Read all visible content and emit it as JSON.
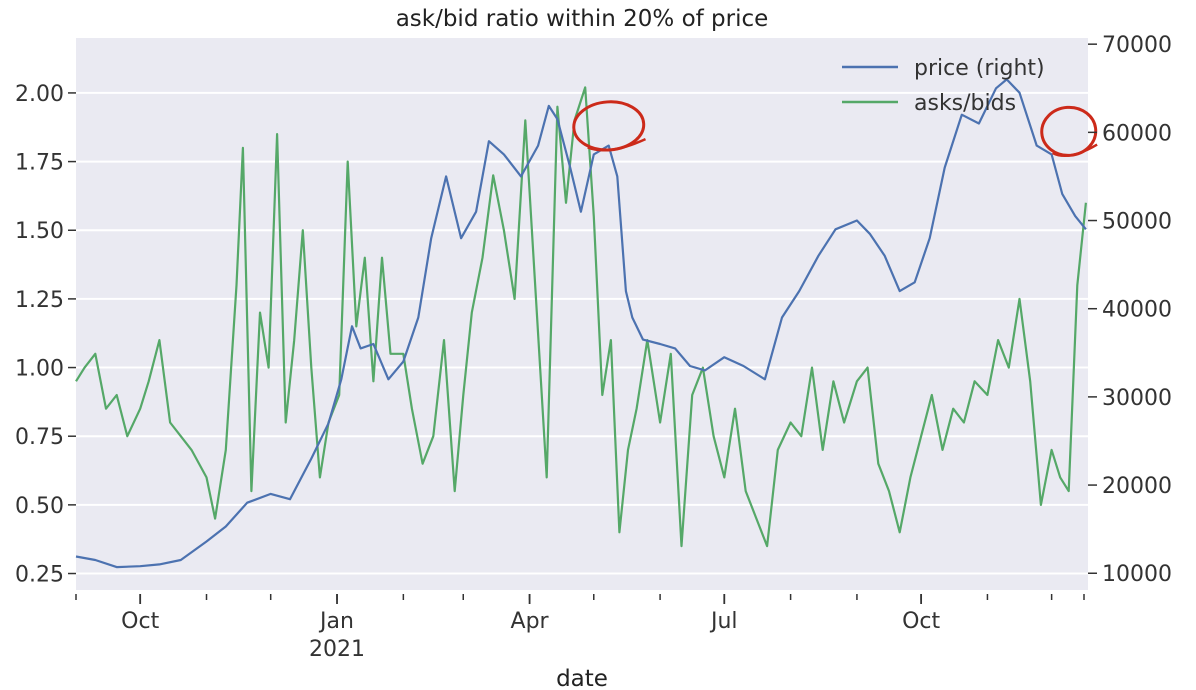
{
  "chart_data": {
    "type": "line",
    "title": "ask/bid ratio within 20% of price",
    "xlabel": "date",
    "x_ticks": [
      {
        "date": "2020-10-01",
        "label": "Oct",
        "sublabel": ""
      },
      {
        "date": "2021-01-01",
        "label": "Jan",
        "sublabel": "2021"
      },
      {
        "date": "2021-04-01",
        "label": "Apr",
        "sublabel": ""
      },
      {
        "date": "2021-07-01",
        "label": "Jul",
        "sublabel": ""
      },
      {
        "date": "2021-10-01",
        "label": "Oct",
        "sublabel": ""
      }
    ],
    "x_range": [
      "2020-09-01",
      "2021-12-18"
    ],
    "left_axis": {
      "ticks": [
        "0.25",
        "0.50",
        "0.75",
        "1.00",
        "1.25",
        "1.50",
        "1.75",
        "2.00"
      ],
      "ylim": [
        0.19,
        2.2
      ]
    },
    "right_axis": {
      "ticks": [
        "10000",
        "20000",
        "30000",
        "40000",
        "50000",
        "60000",
        "70000"
      ],
      "ylim": [
        8100,
        70700
      ]
    },
    "grid": true,
    "legend_position": "top-right",
    "series": [
      {
        "name": "price (right)",
        "axis": "right",
        "color": "#4c72b0",
        "x": [
          "2020-09-01",
          "2020-09-10",
          "2020-09-20",
          "2020-10-01",
          "2020-10-10",
          "2020-10-20",
          "2020-11-01",
          "2020-11-10",
          "2020-11-20",
          "2020-12-01",
          "2020-12-10",
          "2020-12-20",
          "2020-12-28",
          "2021-01-03",
          "2021-01-08",
          "2021-01-12",
          "2021-01-18",
          "2021-01-25",
          "2021-02-01",
          "2021-02-08",
          "2021-02-14",
          "2021-02-21",
          "2021-02-28",
          "2021-03-07",
          "2021-03-13",
          "2021-03-20",
          "2021-03-28",
          "2021-04-05",
          "2021-04-10",
          "2021-04-14",
          "2021-04-20",
          "2021-04-25",
          "2021-05-01",
          "2021-05-08",
          "2021-05-12",
          "2021-05-16",
          "2021-05-19",
          "2021-05-24",
          "2021-06-01",
          "2021-06-08",
          "2021-06-15",
          "2021-06-22",
          "2021-07-01",
          "2021-07-10",
          "2021-07-20",
          "2021-07-28",
          "2021-08-05",
          "2021-08-14",
          "2021-08-22",
          "2021-09-01",
          "2021-09-07",
          "2021-09-14",
          "2021-09-21",
          "2021-09-28",
          "2021-10-05",
          "2021-10-12",
          "2021-10-20",
          "2021-10-28",
          "2021-11-05",
          "2021-11-10",
          "2021-11-16",
          "2021-11-24",
          "2021-12-01",
          "2021-12-06",
          "2021-12-12",
          "2021-12-17"
        ],
        "values": [
          11900,
          11500,
          10700,
          10800,
          11000,
          11500,
          13600,
          15300,
          18000,
          19000,
          18400,
          23000,
          27000,
          32000,
          38000,
          35500,
          36000,
          32000,
          34000,
          39000,
          48000,
          55000,
          48000,
          51000,
          59000,
          57500,
          55000,
          58500,
          63000,
          61500,
          56000,
          51000,
          57500,
          58500,
          55000,
          42000,
          39000,
          36500,
          36000,
          35500,
          33500,
          33000,
          34500,
          33500,
          32000,
          39000,
          42000,
          46000,
          49000,
          50000,
          48500,
          46000,
          42000,
          43000,
          48000,
          56000,
          62000,
          61000,
          65000,
          66000,
          64500,
          58500,
          57500,
          53000,
          50500,
          49000
        ]
      },
      {
        "name": "asks/bids",
        "axis": "left",
        "color": "#55a868",
        "x": [
          "2020-09-01",
          "2020-09-05",
          "2020-09-10",
          "2020-09-15",
          "2020-09-20",
          "2020-09-25",
          "2020-10-01",
          "2020-10-05",
          "2020-10-10",
          "2020-10-15",
          "2020-10-20",
          "2020-10-25",
          "2020-11-01",
          "2020-11-05",
          "2020-11-10",
          "2020-11-15",
          "2020-11-18",
          "2020-11-22",
          "2020-11-26",
          "2020-11-30",
          "2020-12-04",
          "2020-12-08",
          "2020-12-12",
          "2020-12-16",
          "2020-12-20",
          "2020-12-24",
          "2020-12-28",
          "2021-01-02",
          "2021-01-06",
          "2021-01-10",
          "2021-01-14",
          "2021-01-18",
          "2021-01-22",
          "2021-01-26",
          "2021-02-01",
          "2021-02-05",
          "2021-02-10",
          "2021-02-15",
          "2021-02-20",
          "2021-02-25",
          "2021-03-01",
          "2021-03-05",
          "2021-03-10",
          "2021-03-15",
          "2021-03-20",
          "2021-03-25",
          "2021-03-30",
          "2021-04-04",
          "2021-04-09",
          "2021-04-14",
          "2021-04-18",
          "2021-04-22",
          "2021-04-27",
          "2021-05-01",
          "2021-05-05",
          "2021-05-09",
          "2021-05-13",
          "2021-05-17",
          "2021-05-21",
          "2021-05-26",
          "2021-06-01",
          "2021-06-06",
          "2021-06-11",
          "2021-06-16",
          "2021-06-21",
          "2021-06-26",
          "2021-07-01",
          "2021-07-06",
          "2021-07-11",
          "2021-07-16",
          "2021-07-21",
          "2021-07-26",
          "2021-08-01",
          "2021-08-06",
          "2021-08-11",
          "2021-08-16",
          "2021-08-21",
          "2021-08-26",
          "2021-09-01",
          "2021-09-06",
          "2021-09-11",
          "2021-09-16",
          "2021-09-21",
          "2021-09-26",
          "2021-10-01",
          "2021-10-06",
          "2021-10-11",
          "2021-10-16",
          "2021-10-21",
          "2021-10-26",
          "2021-11-01",
          "2021-11-06",
          "2021-11-11",
          "2021-11-16",
          "2021-11-21",
          "2021-11-26",
          "2021-12-01",
          "2021-12-05",
          "2021-12-09",
          "2021-12-13",
          "2021-12-17"
        ],
        "values": [
          0.95,
          1.0,
          1.05,
          0.85,
          0.9,
          0.75,
          0.85,
          0.95,
          1.1,
          0.8,
          0.75,
          0.7,
          0.6,
          0.45,
          0.7,
          1.3,
          1.8,
          0.55,
          1.2,
          1.0,
          1.85,
          0.8,
          1.1,
          1.5,
          1.0,
          0.6,
          0.8,
          0.9,
          1.75,
          1.15,
          1.4,
          0.95,
          1.4,
          1.05,
          1.05,
          0.85,
          0.65,
          0.75,
          1.1,
          0.55,
          0.9,
          1.2,
          1.4,
          1.7,
          1.5,
          1.25,
          1.9,
          1.25,
          0.6,
          1.95,
          1.6,
          1.9,
          2.02,
          1.55,
          0.9,
          1.1,
          0.4,
          0.7,
          0.85,
          1.1,
          0.8,
          1.05,
          0.35,
          0.9,
          1.0,
          0.75,
          0.6,
          0.85,
          0.55,
          0.45,
          0.35,
          0.7,
          0.8,
          0.75,
          1.0,
          0.7,
          0.95,
          0.8,
          0.95,
          1.0,
          0.65,
          0.55,
          0.4,
          0.6,
          0.75,
          0.9,
          0.7,
          0.85,
          0.8,
          0.95,
          0.9,
          1.1,
          1.0,
          1.25,
          0.95,
          0.5,
          0.7,
          0.6,
          0.55,
          1.3,
          1.6
        ]
      }
    ]
  },
  "annotations": {
    "color": "#cc2a1a"
  }
}
